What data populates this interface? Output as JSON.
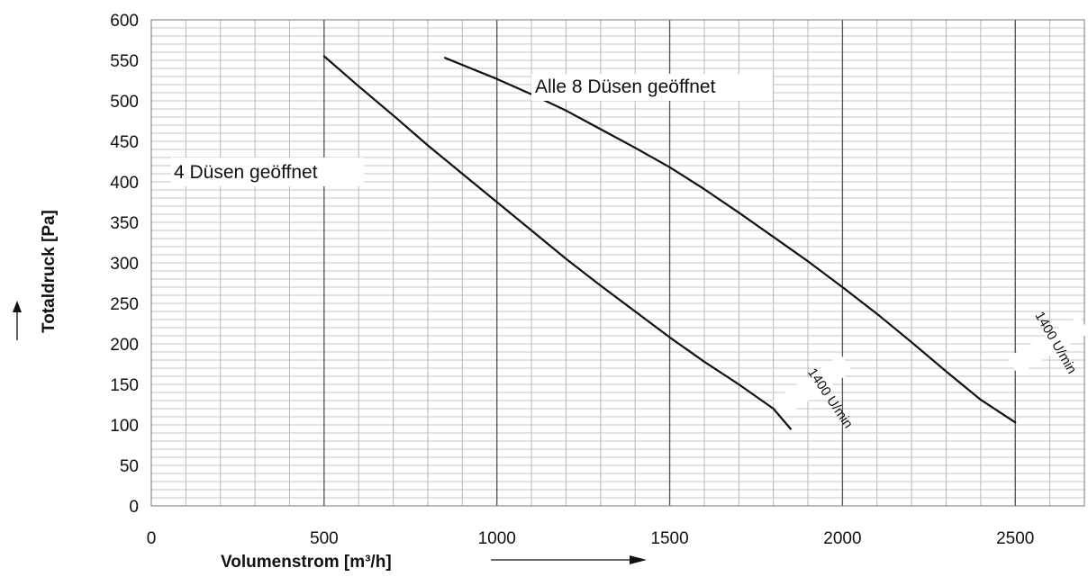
{
  "chart_data": {
    "type": "line",
    "xlabel": "Volumenstrom [m³/h]",
    "ylabel": "Totaldruck [Pa]",
    "xlim": [
      0,
      2700
    ],
    "ylim": [
      0,
      600
    ],
    "x_ticks": [
      "0",
      "500",
      "1000",
      "1500",
      "2000",
      "2500"
    ],
    "y_ticks": [
      "0",
      "50",
      "100",
      "150",
      "200",
      "250",
      "300",
      "350",
      "400",
      "450",
      "500",
      "550",
      "600"
    ],
    "grid": true,
    "series": [
      {
        "name": "4 Düsen geöffnet",
        "speed_label": "1400 U/min",
        "x": [
          500,
          600,
          700,
          800,
          900,
          1000,
          1100,
          1200,
          1300,
          1400,
          1500,
          1600,
          1700,
          1800,
          1850
        ],
        "y": [
          555,
          518,
          482,
          445,
          410,
          375,
          340,
          305,
          272,
          240,
          208,
          178,
          150,
          120,
          95
        ]
      },
      {
        "name": "Alle 8 Düsen geöffnet",
        "speed_label": "1400 U/min",
        "x": [
          850,
          1000,
          1100,
          1200,
          1300,
          1400,
          1500,
          1600,
          1700,
          1800,
          1900,
          2000,
          2100,
          2200,
          2300,
          2400,
          2500
        ],
        "y": [
          553,
          527,
          508,
          488,
          465,
          442,
          418,
          391,
          362,
          332,
          302,
          270,
          237,
          202,
          166,
          131,
          103
        ]
      }
    ],
    "annotations": {
      "curve_4": "4 Düsen geöffnet",
      "curve_8": "Alle 8 Düsen geöffnet",
      "speed_4": "1400 U/min",
      "speed_8": "1400 U/min"
    }
  }
}
